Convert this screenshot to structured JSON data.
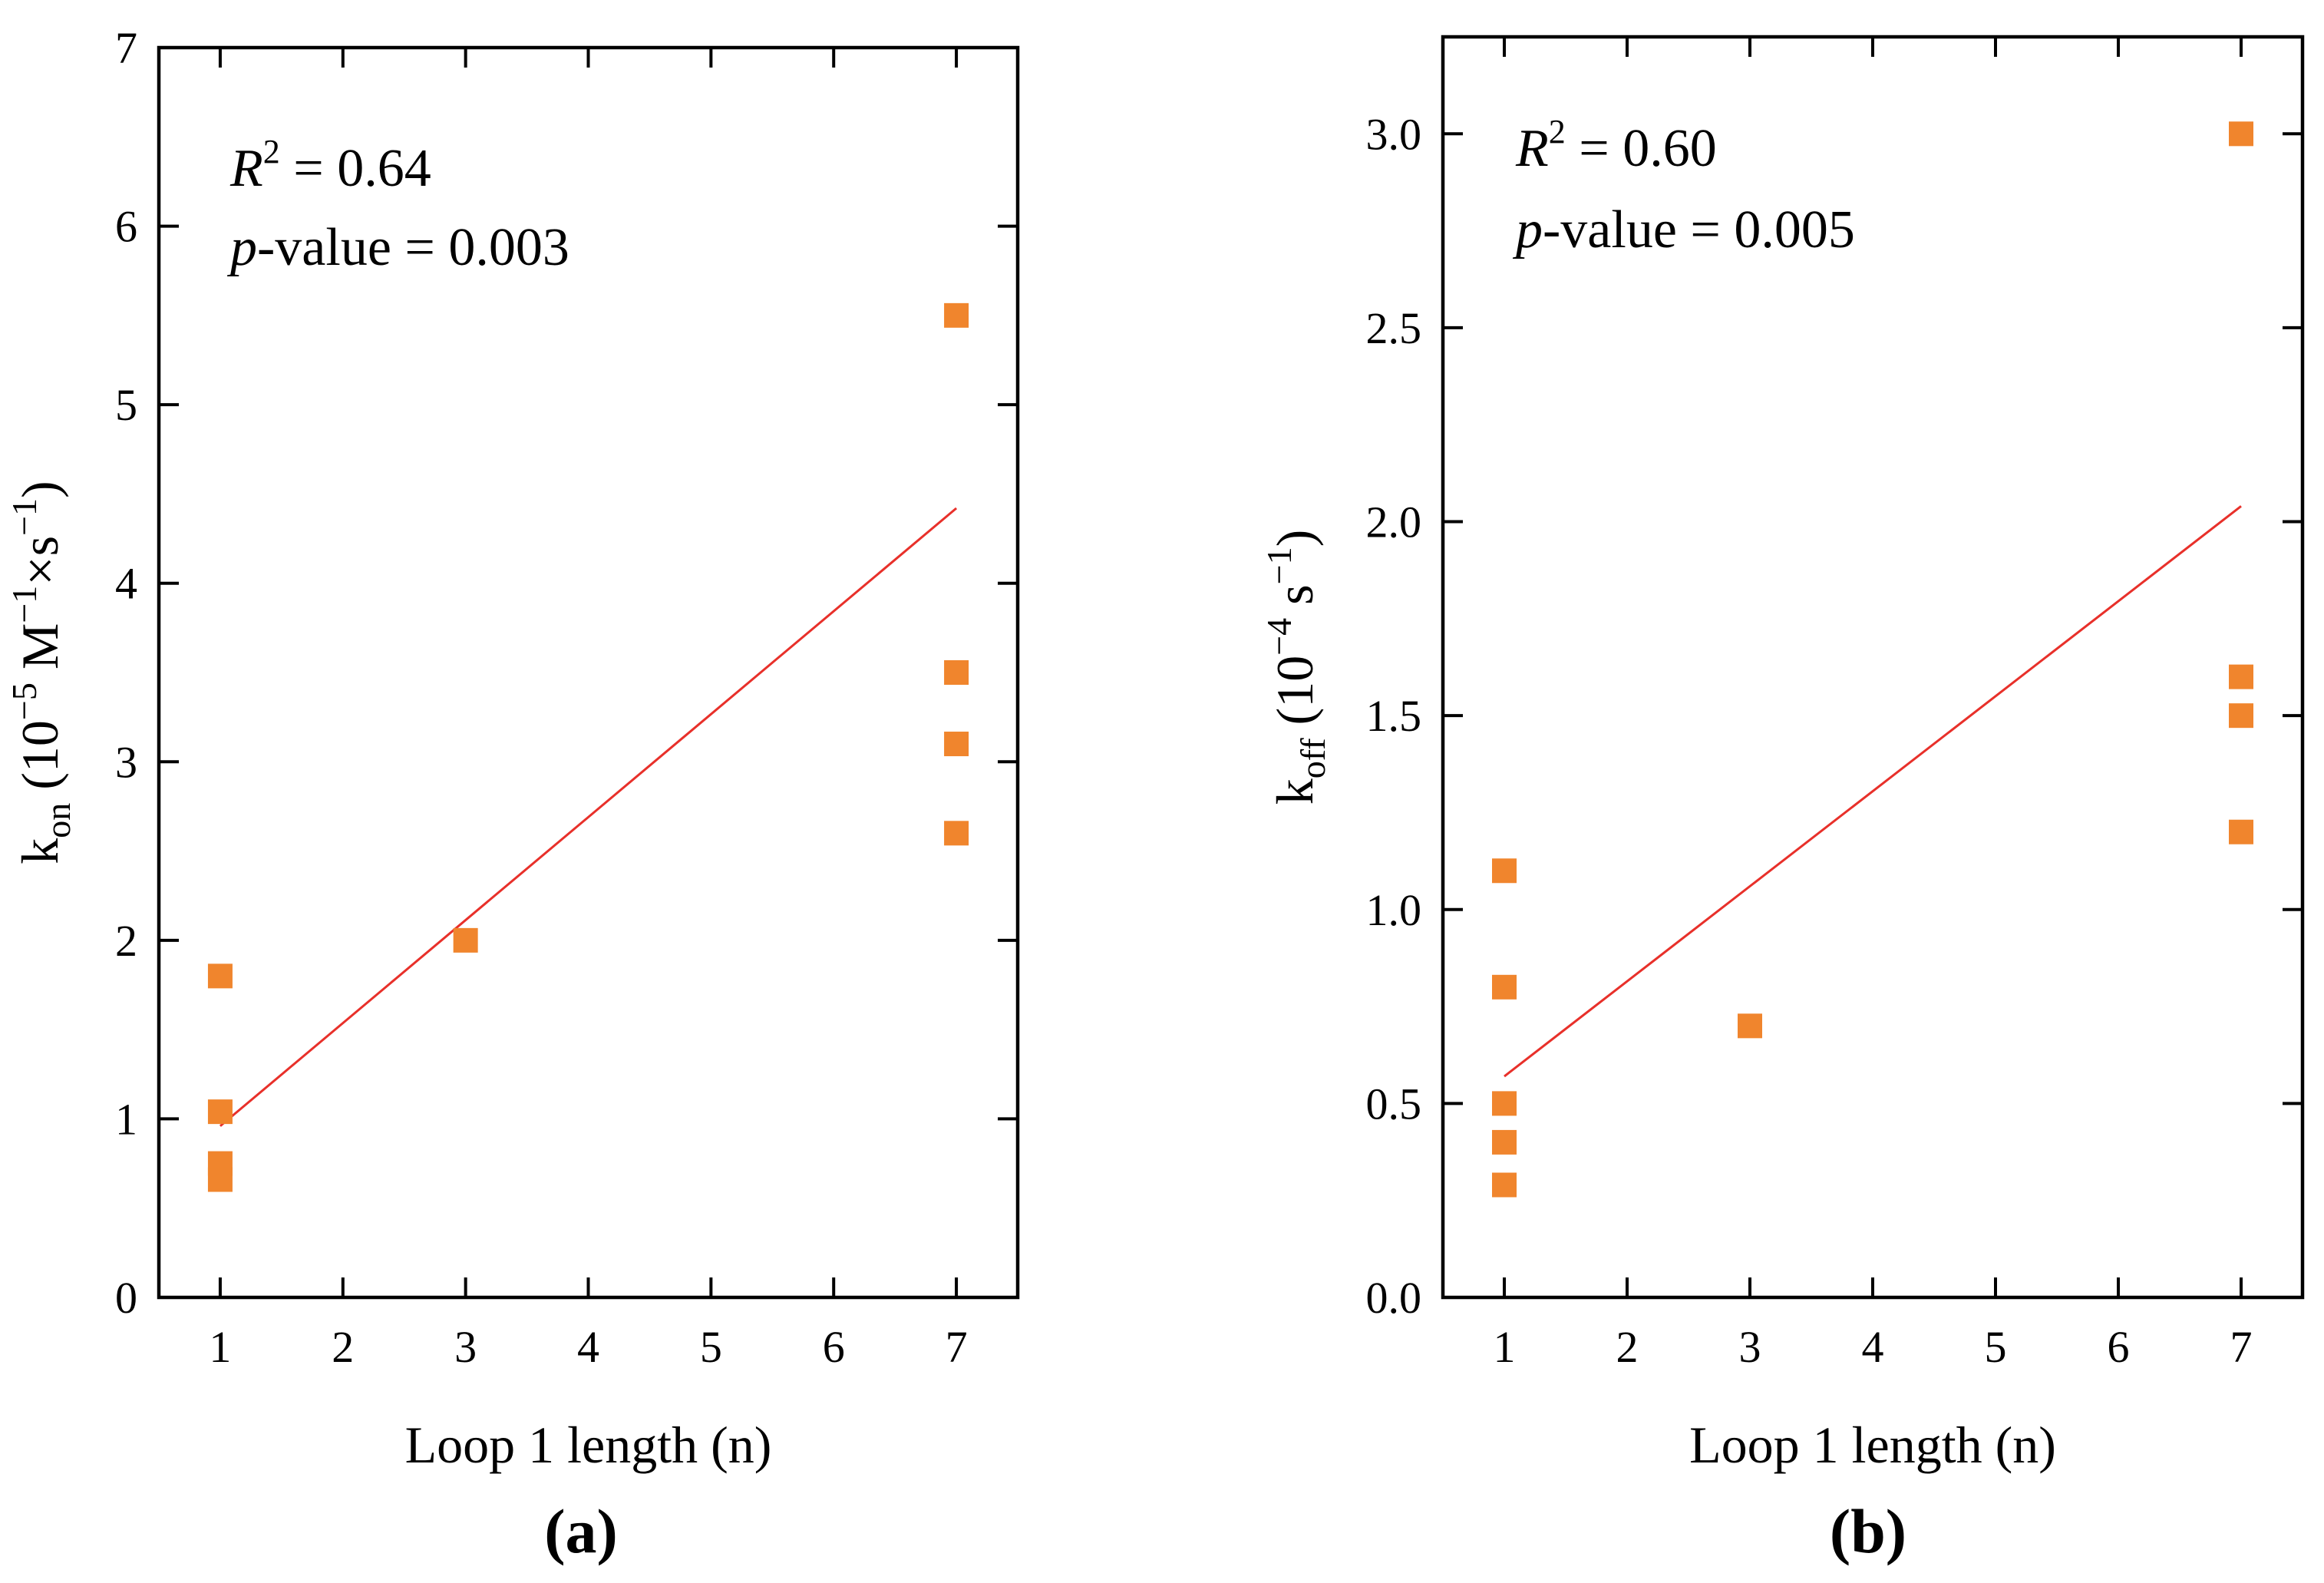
{
  "chart_data": [
    {
      "type": "scatter",
      "panel_label": "a",
      "xlabel": "Loop 1 length (n)",
      "ylabel": {
        "base": "k",
        "sub": "on",
        "rest": " (10",
        "exp1": "−5",
        "mid": " M",
        "exp2": "−1",
        "mid2": "×s",
        "exp3": "−1",
        "end": ")"
      },
      "xlim": [
        0.5,
        7.5
      ],
      "ylim": [
        0,
        7
      ],
      "xticks": [
        1,
        2,
        3,
        4,
        5,
        6,
        7
      ],
      "xtick_labels": [
        "1",
        "2",
        "3",
        "4",
        "5",
        "6",
        "7"
      ],
      "yticks": [
        0,
        1,
        2,
        3,
        4,
        5,
        6,
        7
      ],
      "ytick_labels": [
        "0",
        "1",
        "2",
        "3",
        "4",
        "5",
        "6",
        "7"
      ],
      "grid": false,
      "series": [
        {
          "name": "data",
          "marker": "square",
          "color": "#F0852D",
          "x": [
            1,
            1,
            1,
            1,
            3,
            7,
            7,
            7,
            7
          ],
          "y": [
            1.8,
            1.04,
            0.75,
            0.66,
            2.0,
            5.5,
            3.5,
            3.1,
            2.6
          ]
        }
      ],
      "fit": {
        "color": "#E8302A",
        "x": [
          1,
          7
        ],
        "y": [
          0.96,
          4.42
        ]
      },
      "annotation": {
        "r2_label": "R",
        "r2_exp": "2",
        "r2_value": " = 0.64",
        "p_label": "p",
        "p_value": "-value = 0.003"
      }
    },
    {
      "type": "scatter",
      "panel_label": "b",
      "xlabel": "Loop 1 length (n)",
      "ylabel": {
        "base": "k",
        "sub": "off",
        "rest": " (10",
        "exp1": "−4",
        "mid": " s",
        "exp2": "−1",
        "end": ")"
      },
      "xlim": [
        0.5,
        7.5
      ],
      "ylim": [
        0,
        3.25
      ],
      "xticks": [
        1,
        2,
        3,
        4,
        5,
        6,
        7
      ],
      "xtick_labels": [
        "1",
        "2",
        "3",
        "4",
        "5",
        "6",
        "7"
      ],
      "yticks": [
        0,
        0.5,
        1.0,
        1.5,
        2.0,
        2.5,
        3.0
      ],
      "ytick_labels": [
        "0.0",
        "0.5",
        "1.0",
        "1.5",
        "2.0",
        "2.5",
        "3.0"
      ],
      "grid": false,
      "series": [
        {
          "name": "data",
          "marker": "square",
          "color": "#F0852D",
          "x": [
            1,
            1,
            1,
            1,
            1,
            3,
            7,
            7,
            7,
            7
          ],
          "y": [
            1.1,
            0.8,
            0.5,
            0.4,
            0.29,
            0.7,
            3.0,
            1.6,
            1.5,
            1.2
          ]
        }
      ],
      "fit": {
        "color": "#E8302A",
        "x": [
          1,
          7
        ],
        "y": [
          0.57,
          2.04
        ]
      },
      "annotation": {
        "r2_label": "R",
        "r2_exp": "2",
        "r2_value": " = 0.60",
        "p_label": "p",
        "p_value": "-value = 0.005"
      }
    }
  ]
}
